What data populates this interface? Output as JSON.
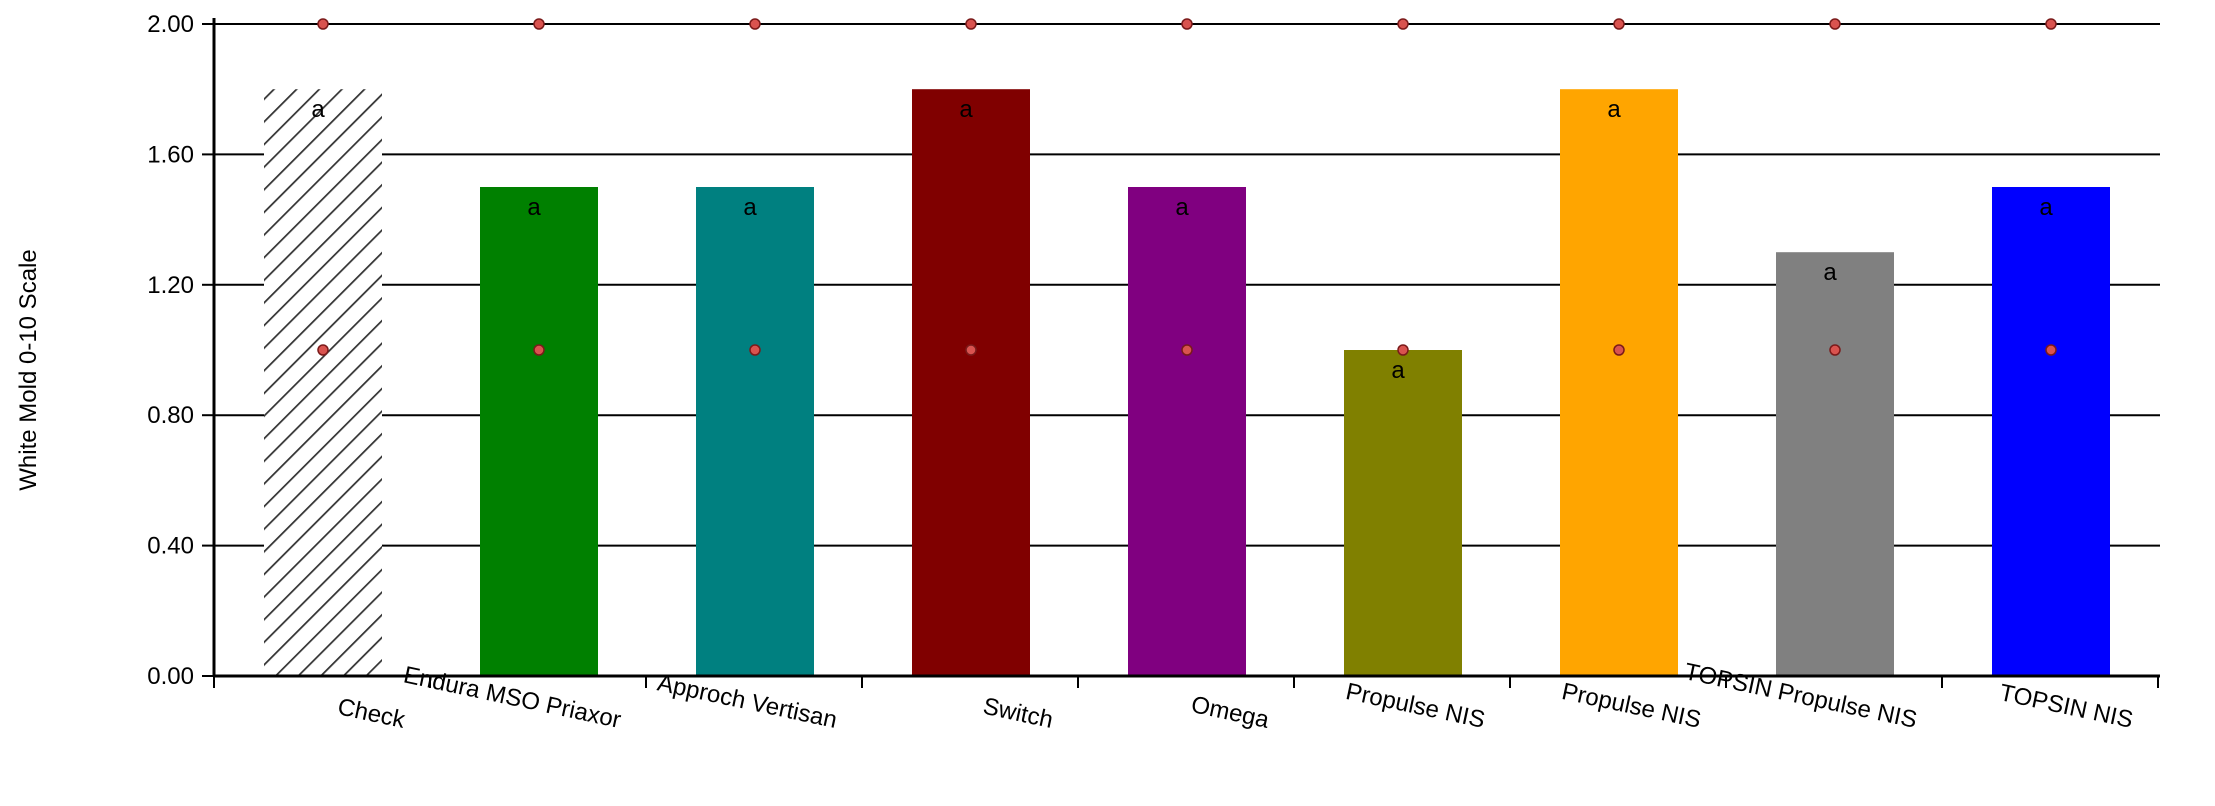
{
  "chart_data": {
    "type": "bar",
    "title": "",
    "ylabel": "White Mold 0-10 Scale",
    "xlabel": "",
    "ylim": [
      0,
      2.0
    ],
    "yticks": [
      0.0,
      0.4,
      0.8,
      1.2,
      1.6,
      2.0
    ],
    "ytick_labels": [
      "0.00",
      "0.40",
      "0.80",
      "1.20",
      "1.60",
      "2.00"
    ],
    "grid": true,
    "categories": [
      "Check",
      "Endura MSO Priaxor",
      "Approch Vertisan",
      "Switch",
      "Omega",
      "Propulse NIS",
      "Propulse NIS",
      "TOPSIN Propulse NIS",
      "TOPSIN NIS"
    ],
    "values": [
      1.8,
      1.5,
      1.5,
      1.8,
      1.5,
      1.0,
      1.8,
      1.3,
      1.5
    ],
    "letters": [
      "a",
      "a",
      "a",
      "a",
      "a",
      "a",
      "a",
      "a",
      "a"
    ],
    "colors": [
      "hatched",
      "#008000",
      "#008080",
      "#800000",
      "#800080",
      "#808000",
      "#FFA500",
      "#808080",
      "#0000FF"
    ],
    "markers_high": [
      2.0,
      2.0,
      2.0,
      2.0,
      2.0,
      2.0,
      2.0,
      2.0,
      2.0
    ],
    "markers_low": [
      1.0,
      1.0,
      1.0,
      1.0,
      1.0,
      1.0,
      1.0,
      1.0,
      1.0
    ],
    "marker_color": "#d9534f"
  }
}
